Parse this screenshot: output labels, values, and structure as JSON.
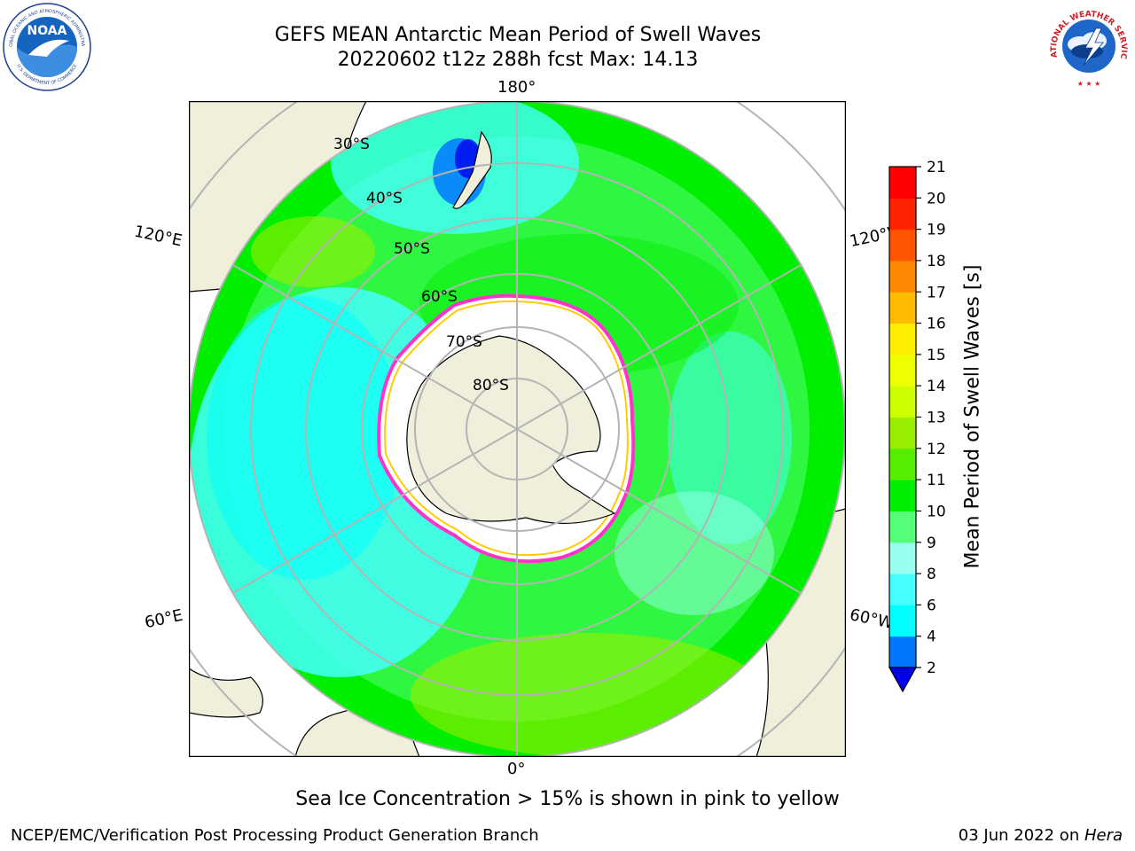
{
  "header": {
    "title": "GEFS MEAN Antarctic Mean Period of Swell Waves",
    "subtitle": "20220602 t12z 288h fcst   Max: 14.13"
  },
  "logos": {
    "noaa_text": "NOAA",
    "noaa_ring_top": "NATIONAL OCEANIC AND ATMOSPHERIC ADMINISTRATION",
    "noaa_ring_bottom": "U.S. DEPARTMENT OF COMMERCE",
    "nws_ring": "NATIONAL WEATHER SERVICE"
  },
  "map": {
    "projection": "south-polar-stereographic",
    "longitude_labels": {
      "top": "180°",
      "bottom": "0°",
      "left_upper": "120°E",
      "left_lower": "60°E",
      "right_upper": "120°W",
      "right_lower": "60°W"
    },
    "latitude_labels": [
      "30°S",
      "40°S",
      "50°S",
      "60°S",
      "70°S",
      "80°S"
    ],
    "colors": {
      "land": "#efefdc",
      "sea_ice_mask": "#ffffff",
      "graticule": "#b4b4b4",
      "ice_edge_pink": "#ff33cc",
      "ice_edge_yellow": "#ffcc00"
    }
  },
  "colorbar": {
    "label": "Mean Period of Swell Waves [s]",
    "ticks": [
      "2",
      "4",
      "6",
      "8",
      "9",
      "10",
      "11",
      "12",
      "13",
      "14",
      "15",
      "16",
      "17",
      "18",
      "19",
      "20",
      "21"
    ],
    "colors": [
      "#0000ee",
      "#0077ff",
      "#00ffff",
      "#44ffff",
      "#99ffee",
      "#55ff77",
      "#00ee00",
      "#55ee00",
      "#99ee00",
      "#ccff00",
      "#eeff00",
      "#ffee00",
      "#ffbb00",
      "#ff8800",
      "#ff5500",
      "#ff2200",
      "#ff0000"
    ]
  },
  "footnote": "Sea Ice Concentration > 15% is shown in pink to yellow",
  "footer": {
    "left": "NCEP/EMC/Verification Post Processing Product Generation Branch",
    "right_date": "03 Jun 2022 on ",
    "right_host": "Hera"
  }
}
